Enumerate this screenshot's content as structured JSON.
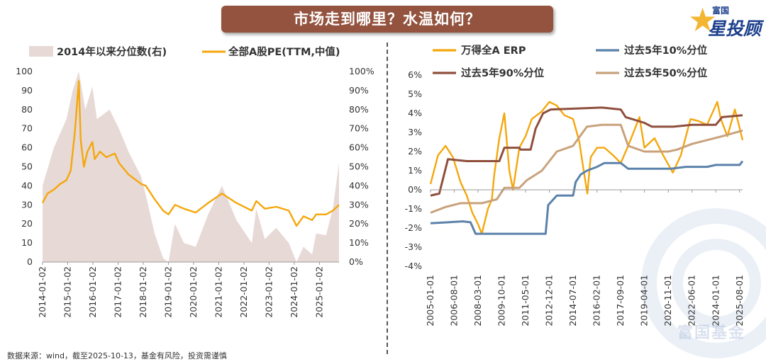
{
  "title": "市场走到哪里？水温如何？",
  "logo": {
    "small": "富国",
    "big": "星投顾"
  },
  "watermark": "富国基金",
  "footer": "数据来源：wind，截至2025-10-13，基金有风险，投资需谨慎",
  "colors": {
    "pe": "#f5a70c",
    "pct": "#e7d9d6",
    "erp": "#f5a70c",
    "p10": "#5b82aa",
    "p90": "#8f4f3c",
    "p50": "#c9a27c",
    "banner": "#93533e"
  },
  "chart_data": [
    {
      "type": "line",
      "legend": [
        "2014年以来分位数(右)",
        "全部A股PE(TTM,中值)"
      ],
      "x_ticks": [
        "2014-01-02",
        "2015-01-02",
        "2016-01-02",
        "2017-01-02",
        "2018-01-02",
        "2019-01-02",
        "2020-01-02",
        "2021-01-02",
        "2022-01-02",
        "2023-01-02",
        "2024-01-02",
        "2025-01-02"
      ],
      "y_left_ticks": [
        "0",
        "10",
        "20",
        "30",
        "40",
        "50",
        "60",
        "70",
        "80",
        "90",
        "100"
      ],
      "y_right_ticks": [
        "0%",
        "10%",
        "20%",
        "30%",
        "40%",
        "50%",
        "60%",
        "70%",
        "80%",
        "90%",
        "100%"
      ],
      "ylim_left": [
        0,
        100
      ],
      "ylim_right": [
        0,
        1
      ],
      "x_range": [
        "2014-01-02",
        "2025-10-13"
      ],
      "series": [
        {
          "name": "全部A股PE(TTM,中值)",
          "axis": "left",
          "kind": "line",
          "points": [
            [
              "2014-01-02",
              31
            ],
            [
              "2014-03-15",
              36
            ],
            [
              "2014-06-15",
              38
            ],
            [
              "2014-09-15",
              41
            ],
            [
              "2014-12-15",
              43
            ],
            [
              "2015-02-15",
              48
            ],
            [
              "2015-04-15",
              68
            ],
            [
              "2015-06-12",
              95
            ],
            [
              "2015-07-10",
              64
            ],
            [
              "2015-08-25",
              50
            ],
            [
              "2015-10-15",
              58
            ],
            [
              "2015-12-25",
              63
            ],
            [
              "2016-01-29",
              54
            ],
            [
              "2016-04-15",
              58
            ],
            [
              "2016-07-15",
              55
            ],
            [
              "2016-11-15",
              57
            ],
            [
              "2017-01-15",
              52
            ],
            [
              "2017-06-01",
              46
            ],
            [
              "2017-12-01",
              41
            ],
            [
              "2018-02-10",
              40
            ],
            [
              "2018-06-15",
              33
            ],
            [
              "2018-10-18",
              27
            ],
            [
              "2019-01-03",
              25
            ],
            [
              "2019-04-08",
              30
            ],
            [
              "2019-08-15",
              28
            ],
            [
              "2020-02-03",
              26
            ],
            [
              "2020-08-01",
              31
            ],
            [
              "2021-02-18",
              36
            ],
            [
              "2021-09-15",
              31
            ],
            [
              "2022-04-26",
              27
            ],
            [
              "2022-07-01",
              32
            ],
            [
              "2022-10-31",
              28
            ],
            [
              "2023-04-15",
              29
            ],
            [
              "2023-10-15",
              27
            ],
            [
              "2024-02-05",
              19
            ],
            [
              "2024-05-15",
              24
            ],
            [
              "2024-09-18",
              22
            ],
            [
              "2024-11-15",
              25
            ],
            [
              "2025-04-08",
              25
            ],
            [
              "2025-07-15",
              27
            ],
            [
              "2025-10-13",
              30
            ]
          ]
        },
        {
          "name": "2014年以来分位数(右)",
          "axis": "right",
          "kind": "area",
          "points": [
            [
              "2014-01-02",
              0.4
            ],
            [
              "2014-06-15",
              0.6
            ],
            [
              "2014-12-15",
              0.75
            ],
            [
              "2015-03-15",
              0.9
            ],
            [
              "2015-06-12",
              1.0
            ],
            [
              "2015-09-15",
              0.8
            ],
            [
              "2015-12-25",
              0.92
            ],
            [
              "2016-03-01",
              0.75
            ],
            [
              "2016-09-01",
              0.8
            ],
            [
              "2017-01-15",
              0.7
            ],
            [
              "2017-06-01",
              0.58
            ],
            [
              "2017-12-01",
              0.45
            ],
            [
              "2018-02-10",
              0.35
            ],
            [
              "2018-06-15",
              0.15
            ],
            [
              "2018-10-18",
              0.02
            ],
            [
              "2019-01-03",
              0.0
            ],
            [
              "2019-04-08",
              0.2
            ],
            [
              "2019-08-15",
              0.1
            ],
            [
              "2020-02-03",
              0.08
            ],
            [
              "2020-08-01",
              0.25
            ],
            [
              "2021-02-18",
              0.4
            ],
            [
              "2021-09-15",
              0.22
            ],
            [
              "2022-04-26",
              0.1
            ],
            [
              "2022-07-01",
              0.28
            ],
            [
              "2022-10-31",
              0.12
            ],
            [
              "2023-04-15",
              0.18
            ],
            [
              "2023-10-15",
              0.1
            ],
            [
              "2024-02-05",
              0.0
            ],
            [
              "2024-05-15",
              0.08
            ],
            [
              "2024-09-18",
              0.04
            ],
            [
              "2024-11-15",
              0.15
            ],
            [
              "2025-04-08",
              0.14
            ],
            [
              "2025-07-15",
              0.28
            ],
            [
              "2025-10-13",
              0.52
            ]
          ]
        }
      ]
    },
    {
      "type": "line",
      "legend": [
        "万得全A ERP",
        "过去5年10%分位",
        "过去5年90%分位",
        "过去5年50%分位"
      ],
      "x_ticks": [
        "2005-01-01",
        "2006-08-01",
        "2008-03-01",
        "2009-10-01",
        "2011-05-01",
        "2012-12-01",
        "2014-07-01",
        "2016-02-01",
        "2017-09-01",
        "2019-04-01",
        "2020-11-01",
        "2022-06-01",
        "2024-01-01",
        "2025-08-01"
      ],
      "y_ticks": [
        "6%",
        "5%",
        "4%",
        "3%",
        "2%",
        "1%",
        "0%",
        "-1%",
        "-2%",
        "-3%",
        "-4%"
      ],
      "ylim": [
        -4,
        6
      ],
      "x_range": [
        "2005-01-01",
        "2025-10-13"
      ],
      "series": [
        {
          "name": "万得全A ERP",
          "values_pct": [
            [
              "2005-01-01",
              0.3
            ],
            [
              "2005-07-01",
              1.8
            ],
            [
              "2006-01-01",
              2.3
            ],
            [
              "2006-07-01",
              1.7
            ],
            [
              "2007-01-01",
              0.4
            ],
            [
              "2007-06-01",
              -0.3
            ],
            [
              "2007-10-16",
              -1.2
            ],
            [
              "2008-03-01",
              -1.8
            ],
            [
              "2008-06-01",
              -2.3
            ],
            [
              "2008-10-28",
              -1.0
            ],
            [
              "2009-02-01",
              -0.5
            ],
            [
              "2009-04-01",
              0.8
            ],
            [
              "2009-08-01",
              2.7
            ],
            [
              "2009-12-01",
              4.0
            ],
            [
              "2010-04-01",
              1.0
            ],
            [
              "2010-07-01",
              0.0
            ],
            [
              "2010-12-01",
              2.2
            ],
            [
              "2011-05-01",
              2.8
            ],
            [
              "2011-10-01",
              3.7
            ],
            [
              "2012-06-01",
              4.1
            ],
            [
              "2012-12-01",
              4.6
            ],
            [
              "2013-06-01",
              4.4
            ],
            [
              "2013-12-01",
              3.9
            ],
            [
              "2014-07-01",
              3.7
            ],
            [
              "2014-12-01",
              2.5
            ],
            [
              "2015-03-01",
              1.2
            ],
            [
              "2015-06-12",
              -0.2
            ],
            [
              "2015-09-01",
              1.7
            ],
            [
              "2016-02-01",
              2.2
            ],
            [
              "2016-08-01",
              2.2
            ],
            [
              "2017-03-01",
              1.8
            ],
            [
              "2017-09-01",
              1.4
            ],
            [
              "2018-03-01",
              2.3
            ],
            [
              "2018-12-01",
              3.8
            ],
            [
              "2019-04-01",
              2.2
            ],
            [
              "2019-12-01",
              2.7
            ],
            [
              "2020-07-01",
              1.8
            ],
            [
              "2021-02-18",
              0.9
            ],
            [
              "2021-09-01",
              1.8
            ],
            [
              "2022-04-26",
              3.7
            ],
            [
              "2022-10-31",
              3.6
            ],
            [
              "2023-06-01",
              3.4
            ],
            [
              "2024-02-05",
              4.6
            ],
            [
              "2024-05-01",
              3.7
            ],
            [
              "2024-10-08",
              2.8
            ],
            [
              "2025-04-08",
              4.2
            ],
            [
              "2025-07-01",
              3.5
            ],
            [
              "2025-10-13",
              2.6
            ]
          ]
        },
        {
          "name": "过去5年10%分位",
          "values_pct": [
            [
              "2005-01-01",
              -1.75
            ],
            [
              "2007-03-01",
              -1.65
            ],
            [
              "2007-09-01",
              -1.7
            ],
            [
              "2008-01-01",
              -2.3
            ],
            [
              "2012-09-01",
              -2.3
            ],
            [
              "2012-11-01",
              -0.8
            ],
            [
              "2013-06-01",
              -0.3
            ],
            [
              "2014-07-01",
              -0.3
            ],
            [
              "2014-09-01",
              0.4
            ],
            [
              "2015-01-01",
              0.8
            ],
            [
              "2015-06-01",
              1.0
            ],
            [
              "2016-02-01",
              1.2
            ],
            [
              "2016-08-01",
              1.4
            ],
            [
              "2017-09-01",
              1.4
            ],
            [
              "2018-03-01",
              1.1
            ],
            [
              "2021-01-01",
              1.1
            ],
            [
              "2022-01-01",
              1.2
            ],
            [
              "2023-06-01",
              1.2
            ],
            [
              "2024-01-01",
              1.3
            ],
            [
              "2025-08-01",
              1.3
            ],
            [
              "2025-10-13",
              1.5
            ]
          ]
        },
        {
          "name": "过去5年90%分位",
          "values_pct": [
            [
              "2005-01-01",
              -0.3
            ],
            [
              "2005-08-01",
              -0.2
            ],
            [
              "2006-03-01",
              1.6
            ],
            [
              "2007-06-01",
              1.5
            ],
            [
              "2009-08-01",
              1.5
            ],
            [
              "2009-12-01",
              2.2
            ],
            [
              "2010-12-01",
              2.2
            ],
            [
              "2011-01-01",
              2.1
            ],
            [
              "2011-09-01",
              2.1
            ],
            [
              "2012-01-01",
              3.2
            ],
            [
              "2012-07-01",
              4.0
            ],
            [
              "2013-01-01",
              4.2
            ],
            [
              "2016-06-01",
              4.3
            ],
            [
              "2017-09-01",
              4.2
            ],
            [
              "2018-01-01",
              3.8
            ],
            [
              "2019-04-01",
              3.5
            ],
            [
              "2019-10-01",
              3.3
            ],
            [
              "2021-03-01",
              3.3
            ],
            [
              "2022-06-01",
              3.4
            ],
            [
              "2024-01-01",
              3.4
            ],
            [
              "2024-06-01",
              3.8
            ],
            [
              "2025-10-13",
              3.9
            ]
          ]
        },
        {
          "name": "过去5年50%分位",
          "values_pct": [
            [
              "2005-01-01",
              -1.2
            ],
            [
              "2006-01-01",
              -0.9
            ],
            [
              "2007-01-01",
              -0.7
            ],
            [
              "2008-06-01",
              -0.7
            ],
            [
              "2009-06-01",
              -0.5
            ],
            [
              "2009-12-01",
              0.1
            ],
            [
              "2010-12-01",
              0.1
            ],
            [
              "2011-06-01",
              0.5
            ],
            [
              "2012-06-01",
              1.0
            ],
            [
              "2013-06-01",
              2.0
            ],
            [
              "2014-07-01",
              2.3
            ],
            [
              "2015-06-01",
              3.3
            ],
            [
              "2016-06-01",
              3.4
            ],
            [
              "2017-09-01",
              3.4
            ],
            [
              "2018-03-01",
              2.3
            ],
            [
              "2019-04-01",
              2.0
            ],
            [
              "2020-11-01",
              2.0
            ],
            [
              "2021-06-01",
              2.1
            ],
            [
              "2022-06-01",
              2.4
            ],
            [
              "2023-06-01",
              2.6
            ],
            [
              "2024-06-01",
              2.8
            ],
            [
              "2025-10-13",
              3.1
            ]
          ]
        }
      ]
    }
  ]
}
